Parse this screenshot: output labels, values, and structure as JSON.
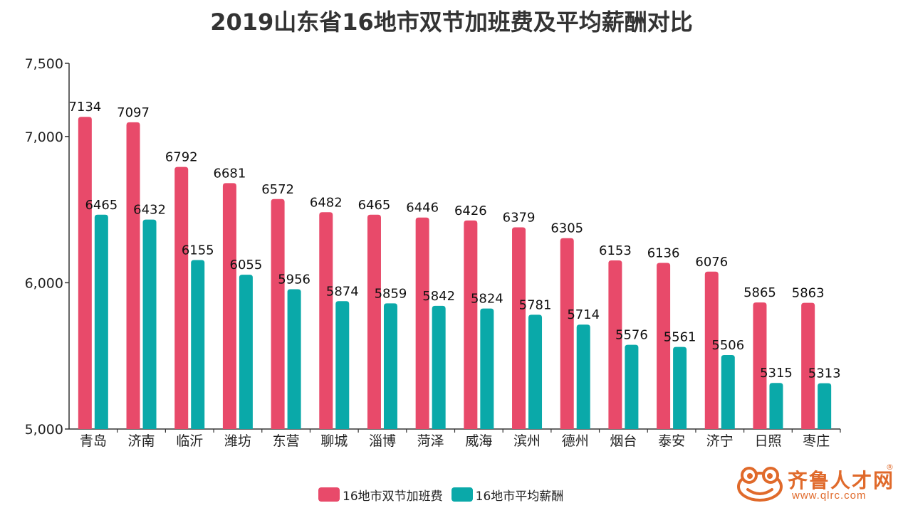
{
  "chart_data": {
    "type": "bar",
    "title": "2019山东省16地市双节加班费及平均薪酬对比",
    "categories": [
      "青岛",
      "济南",
      "临沂",
      "潍坊",
      "东营",
      "聊城",
      "淄博",
      "菏泽",
      "威海",
      "滨州",
      "德州",
      "烟台",
      "泰安",
      "济宁",
      "日照",
      "枣庄"
    ],
    "series": [
      {
        "name": "16地市双节加班费",
        "color": "#e84a6a",
        "values": [
          7134,
          7097,
          6792,
          6681,
          6572,
          6482,
          6465,
          6446,
          6426,
          6379,
          6305,
          6153,
          6136,
          6076,
          5865,
          5863
        ]
      },
      {
        "name": "16地市平均薪酬",
        "color": "#0aa9a9",
        "values": [
          6465,
          6432,
          6155,
          6055,
          5956,
          5874,
          5859,
          5842,
          5824,
          5781,
          5714,
          5576,
          5561,
          5506,
          5315,
          5313
        ]
      }
    ],
    "ylim": [
      5000,
      7500
    ],
    "yticks": [
      5000,
      6000,
      7000,
      7500
    ],
    "ytick_labels": [
      "5,000",
      "6,000",
      "7,000",
      "7,500"
    ],
    "legend_position": "bottom",
    "grid": false
  },
  "logo": {
    "text_cn": "齐鲁人才网",
    "url": "www.qlrc.com",
    "reg": "®",
    "color": "#e06a2b"
  }
}
